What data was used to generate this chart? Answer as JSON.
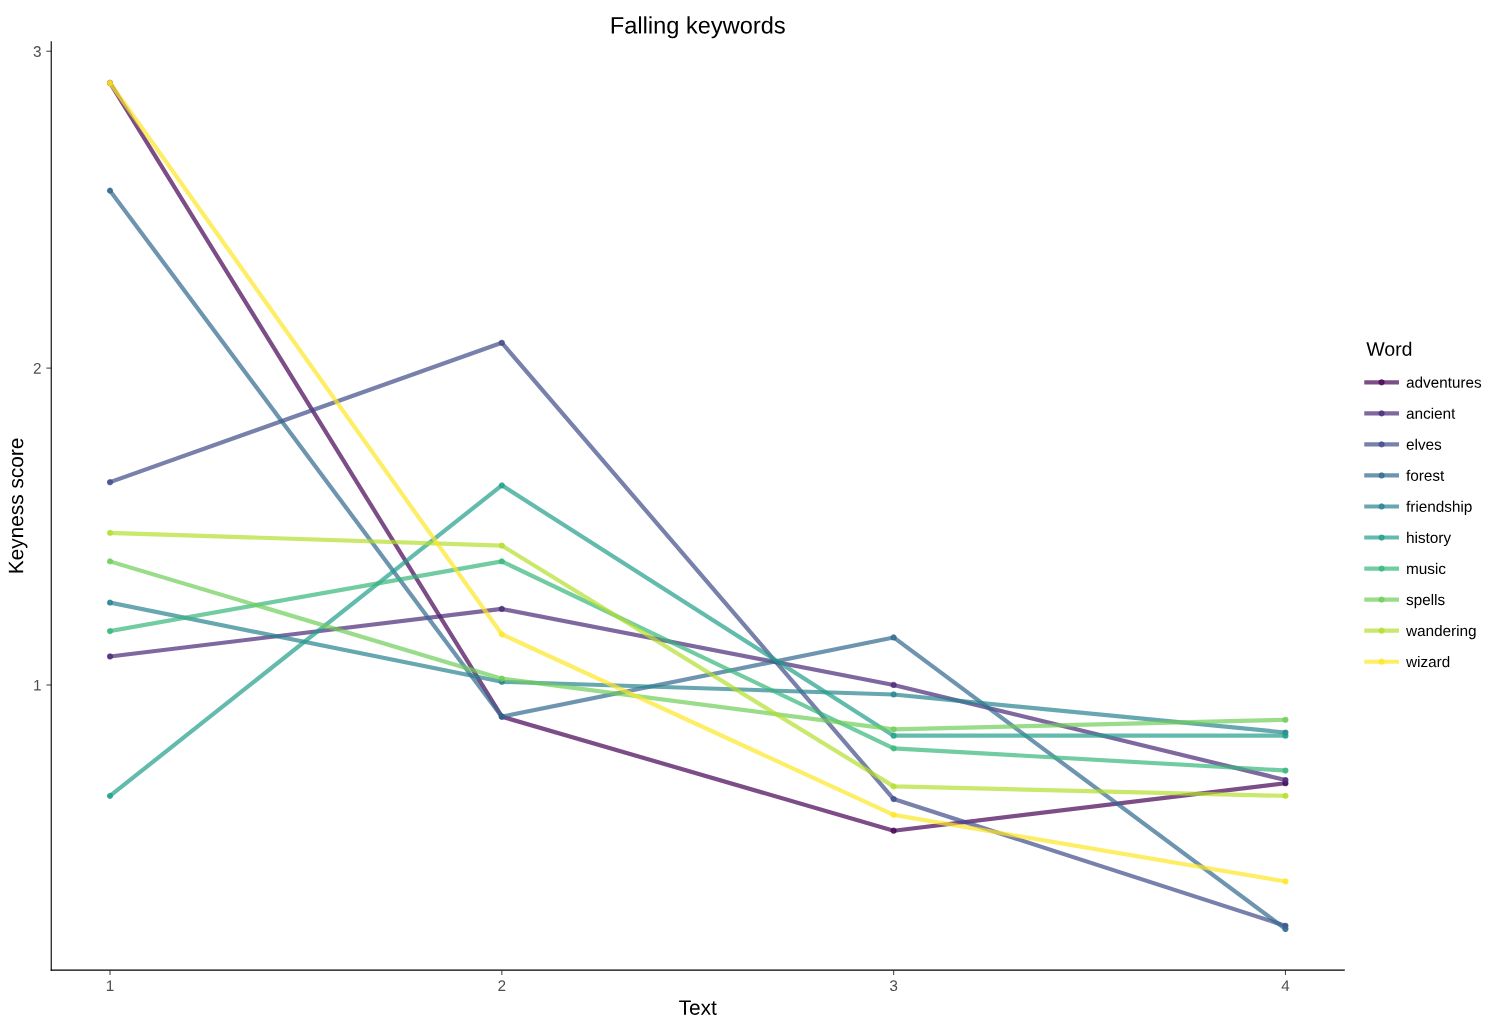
{
  "chart_data": {
    "type": "line",
    "title": "Falling keywords",
    "xlabel": "Text",
    "ylabel": "Keyness score",
    "legend_title": "Word",
    "x": [
      1,
      2,
      3,
      4
    ],
    "series": [
      {
        "name": "adventures",
        "color": "#440154",
        "values": [
          2.9,
          0.9,
          0.54,
          0.69
        ]
      },
      {
        "name": "ancient",
        "color": "#482878",
        "values": [
          1.09,
          1.24,
          1.0,
          0.7
        ]
      },
      {
        "name": "elves",
        "color": "#3e4a89",
        "values": [
          1.64,
          2.08,
          0.64,
          0.24
        ]
      },
      {
        "name": "forest",
        "color": "#31688e",
        "values": [
          2.56,
          0.9,
          1.15,
          0.23
        ]
      },
      {
        "name": "friendship",
        "color": "#26828e",
        "values": [
          1.26,
          1.01,
          0.97,
          0.85
        ]
      },
      {
        "name": "history",
        "color": "#1f9e89",
        "values": [
          0.65,
          1.63,
          0.84,
          0.84
        ]
      },
      {
        "name": "music",
        "color": "#35b779",
        "values": [
          1.17,
          1.39,
          0.8,
          0.73
        ]
      },
      {
        "name": "spells",
        "color": "#6dcd59",
        "values": [
          1.39,
          1.02,
          0.86,
          0.89
        ]
      },
      {
        "name": "wandering",
        "color": "#b4de2c",
        "values": [
          1.48,
          1.44,
          0.68,
          0.65
        ]
      },
      {
        "name": "wizard",
        "color": "#fde725",
        "values": [
          2.9,
          1.16,
          0.59,
          0.38
        ]
      }
    ],
    "xlim": [
      0.85,
      4.15
    ],
    "xticks": [
      1,
      2,
      3,
      4
    ],
    "ylim": [
      0.1,
      3.03
    ],
    "yticks": [
      1,
      2,
      3
    ],
    "grid": false,
    "legend": "right",
    "marker": "circle",
    "line_style": "solid"
  }
}
